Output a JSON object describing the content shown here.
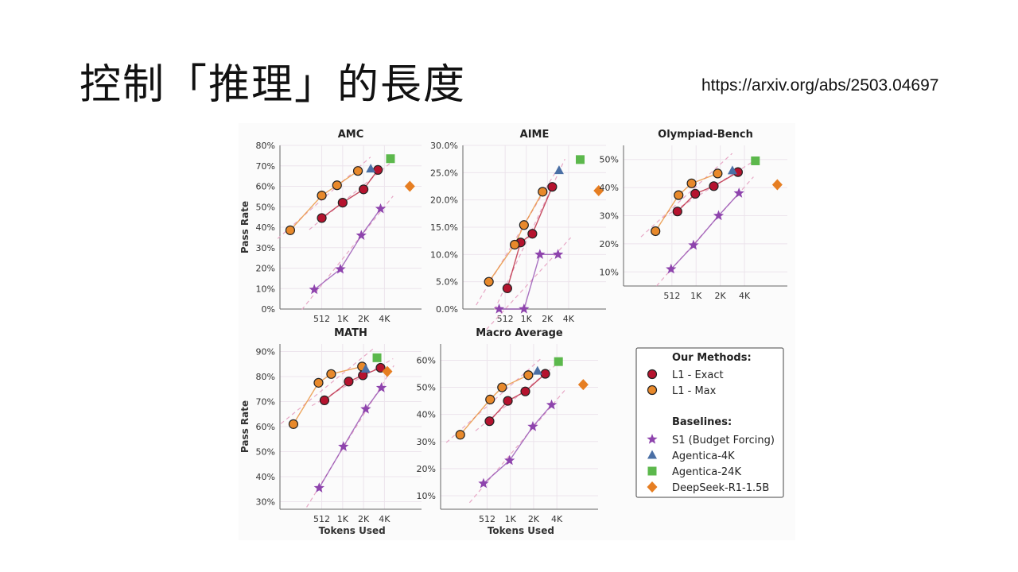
{
  "slide": {
    "title": "控制「推理」的長度",
    "url": "https://arxiv.org/abs/2503.04697"
  },
  "colors": {
    "exact": "#b5132e",
    "max": "#e8892b",
    "s1": "#8e44ad",
    "agentica4k": "#4a6fa5",
    "agentica24k": "#5cb84c",
    "deepseek": "#e67e22"
  },
  "chart_data": [
    {
      "type": "scatter",
      "title": "AMC",
      "ylabel": "Pass Rate",
      "xlabel": "",
      "x_ticks": [
        "512",
        "1K",
        "2K",
        "4K"
      ],
      "y_ticks": [
        "0%",
        "10%",
        "20%",
        "30%",
        "40%",
        "50%",
        "60%",
        "70%",
        "80%"
      ],
      "ylim": [
        0,
        80
      ],
      "series": [
        {
          "name": "L1 - Exact",
          "points": [
            [
              512,
              44.5
            ],
            [
              1024,
              52
            ],
            [
              2048,
              58.5
            ],
            [
              3300,
              68
            ]
          ]
        },
        {
          "name": "L1 - Max",
          "points": [
            [
              180,
              38.5
            ],
            [
              512,
              55.5
            ],
            [
              850,
              60.5
            ],
            [
              1700,
              67.5
            ]
          ]
        },
        {
          "name": "S1 (Budget Forcing)",
          "points": [
            [
              400,
              9.5
            ],
            [
              950,
              19.5
            ],
            [
              1900,
              36
            ],
            [
              3600,
              49
            ]
          ]
        },
        {
          "name": "Agentica-4K",
          "points": [
            [
              2600,
              68.5
            ]
          ]
        },
        {
          "name": "Agentica-24K",
          "points": [
            [
              5000,
              73.5
            ]
          ]
        },
        {
          "name": "DeepSeek-R1-1.5B",
          "points": [
            [
              9500,
              60
            ]
          ]
        }
      ]
    },
    {
      "type": "scatter",
      "title": "AIME",
      "ylabel": "",
      "xlabel": "",
      "x_ticks": [
        "512",
        "1K",
        "2K",
        "4K"
      ],
      "y_ticks": [
        "0.0%",
        "5.0%",
        "10.0%",
        "15.0%",
        "20.0%",
        "25.0%",
        "30.0%"
      ],
      "ylim": [
        0,
        30
      ],
      "series": [
        {
          "name": "L1 - Exact",
          "points": [
            [
              550,
              3.8
            ],
            [
              850,
              12.2
            ],
            [
              1250,
              13.8
            ],
            [
              2400,
              22.4
            ]
          ]
        },
        {
          "name": "L1 - Max",
          "points": [
            [
              300,
              5
            ],
            [
              700,
              11.8
            ],
            [
              950,
              15.4
            ],
            [
              1750,
              21.5
            ]
          ]
        },
        {
          "name": "S1 (Budget Forcing)",
          "points": [
            [
              420,
              0
            ],
            [
              950,
              0
            ],
            [
              1600,
              10
            ],
            [
              2900,
              10
            ]
          ]
        },
        {
          "name": "Agentica-4K",
          "points": [
            [
              3000,
              25.4
            ]
          ]
        },
        {
          "name": "Agentica-24K",
          "points": [
            [
              6000,
              27.4
            ]
          ]
        },
        {
          "name": "DeepSeek-R1-1.5B",
          "points": [
            [
              11000,
              21.7
            ]
          ]
        }
      ]
    },
    {
      "type": "scatter",
      "title": "Olympiad-Bench",
      "ylabel": "",
      "xlabel": "",
      "x_ticks": [
        "512",
        "1K",
        "2K",
        "4K"
      ],
      "y_ticks": [
        "10%",
        "20%",
        "30%",
        "40%",
        "50%"
      ],
      "ylim": [
        5,
        55
      ],
      "series": [
        {
          "name": "L1 - Exact",
          "points": [
            [
              600,
              31.5
            ],
            [
              1000,
              37.8
            ],
            [
              1700,
              40.5
            ],
            [
              3400,
              45.5
            ]
          ]
        },
        {
          "name": "L1 - Max",
          "points": [
            [
              320,
              24.5
            ],
            [
              620,
              37.3
            ],
            [
              900,
              41.5
            ],
            [
              1900,
              45
            ]
          ]
        },
        {
          "name": "S1 (Budget Forcing)",
          "points": [
            [
              500,
              11
            ],
            [
              950,
              19.5
            ],
            [
              1950,
              30
            ],
            [
              3500,
              38
            ]
          ]
        },
        {
          "name": "Agentica-4K",
          "points": [
            [
              2900,
              46
            ]
          ]
        },
        {
          "name": "Agentica-24K",
          "points": [
            [
              5600,
              49.5
            ]
          ]
        },
        {
          "name": "DeepSeek-R1-1.5B",
          "points": [
            [
              10500,
              41
            ]
          ]
        }
      ]
    },
    {
      "type": "scatter",
      "title": "MATH",
      "ylabel": "Pass Rate",
      "xlabel": "Tokens Used",
      "x_ticks": [
        "512",
        "1K",
        "2K",
        "4K"
      ],
      "y_ticks": [
        "30%",
        "40%",
        "50%",
        "60%",
        "70%",
        "80%",
        "90%"
      ],
      "ylim": [
        27,
        93
      ],
      "series": [
        {
          "name": "L1 - Exact",
          "points": [
            [
              560,
              70.5
            ],
            [
              1250,
              78
            ],
            [
              2000,
              80.5
            ],
            [
              3600,
              83.5
            ]
          ]
        },
        {
          "name": "L1 - Max",
          "points": [
            [
              200,
              61
            ],
            [
              460,
              77.5
            ],
            [
              700,
              81
            ],
            [
              1950,
              84
            ]
          ]
        },
        {
          "name": "S1 (Budget Forcing)",
          "points": [
            [
              470,
              35.5
            ],
            [
              1050,
              52
            ],
            [
              2200,
              67
            ],
            [
              3700,
              75.5
            ]
          ]
        },
        {
          "name": "Agentica-4K",
          "points": [
            [
              2200,
              83
            ]
          ]
        },
        {
          "name": "Agentica-24K",
          "points": [
            [
              3200,
              87.5
            ]
          ]
        },
        {
          "name": "DeepSeek-R1-1.5B",
          "points": [
            [
              4500,
              82
            ]
          ]
        }
      ]
    },
    {
      "type": "scatter",
      "title": "Macro Average",
      "ylabel": "",
      "xlabel": "Tokens Used",
      "x_ticks": [
        "512",
        "1K",
        "2K",
        "4K"
      ],
      "y_ticks": [
        "10%",
        "20%",
        "30%",
        "40%",
        "50%",
        "60%"
      ],
      "ylim": [
        5,
        66
      ],
      "series": [
        {
          "name": "L1 - Exact",
          "points": [
            [
              550,
              37.5
            ],
            [
              950,
              45
            ],
            [
              1600,
              48.5
            ],
            [
              2900,
              55
            ]
          ]
        },
        {
          "name": "L1 - Max",
          "points": [
            [
              230,
              32.5
            ],
            [
              560,
              45.5
            ],
            [
              800,
              50
            ],
            [
              1750,
              54.5
            ]
          ]
        },
        {
          "name": "S1 (Budget Forcing)",
          "points": [
            [
              460,
              14.5
            ],
            [
              1000,
              23
            ],
            [
              2000,
              35.5
            ],
            [
              3500,
              43.5
            ]
          ]
        },
        {
          "name": "Agentica-4K",
          "points": [
            [
              2300,
              56
            ]
          ]
        },
        {
          "name": "Agentica-24K",
          "points": [
            [
              4300,
              59.5
            ]
          ]
        },
        {
          "name": "DeepSeek-R1-1.5B",
          "points": [
            [
              9000,
              51
            ]
          ]
        }
      ]
    }
  ],
  "legend": {
    "our_header": "Our Methods:",
    "baseline_header": "Baselines:",
    "items": [
      {
        "key": "exact",
        "label": "L1 - Exact",
        "marker": "circle"
      },
      {
        "key": "max",
        "label": "L1 - Max",
        "marker": "circle"
      },
      {
        "key": "s1",
        "label": "S1 (Budget Forcing)",
        "marker": "star"
      },
      {
        "key": "agentica4k",
        "label": "Agentica-4K",
        "marker": "triangle"
      },
      {
        "key": "agentica24k",
        "label": "Agentica-24K",
        "marker": "square"
      },
      {
        "key": "deepseek",
        "label": "DeepSeek-R1-1.5B",
        "marker": "diamond"
      }
    ]
  }
}
